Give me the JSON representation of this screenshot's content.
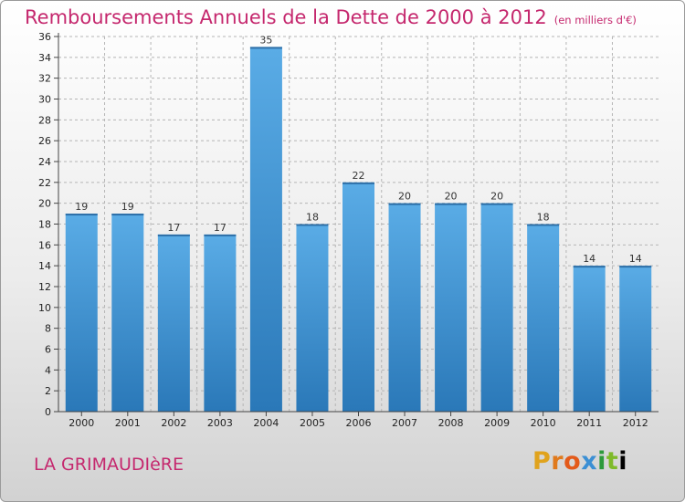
{
  "title": "Remboursements Annuels de la Dette de 2000 à 2012",
  "subtitle": "(en milliers d'€)",
  "commune": "LA GRIMAUDIèRE",
  "logo_text": [
    "P",
    "r",
    "o",
    "x",
    "i",
    "t",
    "i"
  ],
  "colors": {
    "title": "#c5286e",
    "bar_top": "#5aace6",
    "bar_bottom": "#2a78b8",
    "grid": "#b5b5b5"
  },
  "chart_data": {
    "type": "bar",
    "categories": [
      "2000",
      "2001",
      "2002",
      "2003",
      "2004",
      "2005",
      "2006",
      "2007",
      "2008",
      "2009",
      "2010",
      "2011",
      "2012"
    ],
    "values": [
      19,
      19,
      17,
      17,
      35,
      18,
      22,
      20,
      20,
      20,
      18,
      14,
      14
    ],
    "title": "Remboursements Annuels de la Dette de 2000 à 2012",
    "ylabel": "",
    "xlabel": "",
    "ylim": [
      0,
      36
    ],
    "yticks": [
      0,
      2,
      4,
      6,
      8,
      10,
      12,
      14,
      16,
      18,
      20,
      22,
      24,
      26,
      28,
      30,
      32,
      34,
      36
    ],
    "grid": true,
    "data_labels": true
  }
}
